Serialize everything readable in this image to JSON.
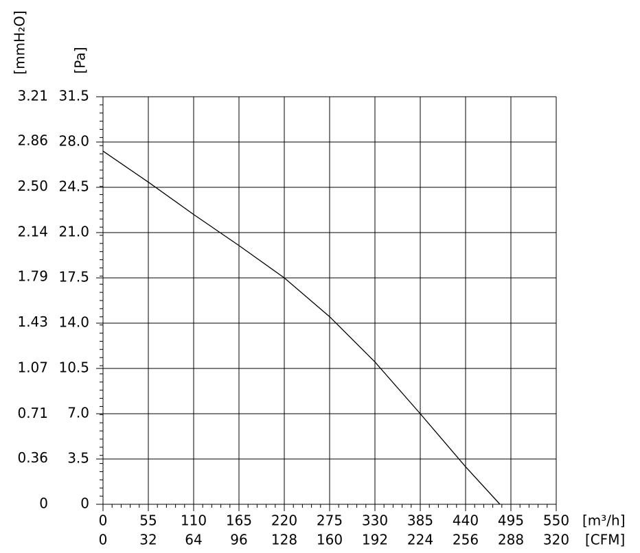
{
  "chart_data": {
    "type": "line",
    "x_label": "[m³/h]",
    "x2_label": "[CFM]",
    "y_label": "[Pa]",
    "y2_label": "[mmH₂O]",
    "x": [
      0,
      55,
      110,
      165,
      220,
      275,
      330,
      385,
      440,
      481.7
    ],
    "series": [
      {
        "color": "#000000",
        "values": [
          27.3,
          24.9,
          22.4,
          20.0,
          17.5,
          14.5,
          11.0,
          7.0,
          2.9,
          0
        ]
      }
    ],
    "xlim": [
      0,
      550
    ],
    "xticks": [
      0,
      55,
      110,
      165,
      220,
      275,
      330,
      385,
      440,
      495,
      550
    ],
    "x2lim": [
      0,
      320
    ],
    "x2ticks": [
      0,
      32,
      64,
      96,
      128,
      160,
      192,
      224,
      256,
      288,
      320
    ],
    "ylim": [
      0,
      31.5
    ],
    "yticks": [
      0,
      3.5,
      {
        "value": 7,
        "label": "7.0"
      },
      10.5,
      {
        "value": 14,
        "label": "14.0"
      },
      17.5,
      {
        "value": 21,
        "label": "21.0"
      },
      24.5,
      {
        "value": 28,
        "label": "28.0"
      },
      31.5
    ],
    "y2lim": [
      0,
      3.21
    ],
    "y2ticks": [
      0,
      0.36,
      0.71,
      1.07,
      1.43,
      1.79,
      2.14,
      {
        "value": 2.5,
        "label": "2.50"
      },
      2.86,
      3.21
    ],
    "grid": true
  }
}
